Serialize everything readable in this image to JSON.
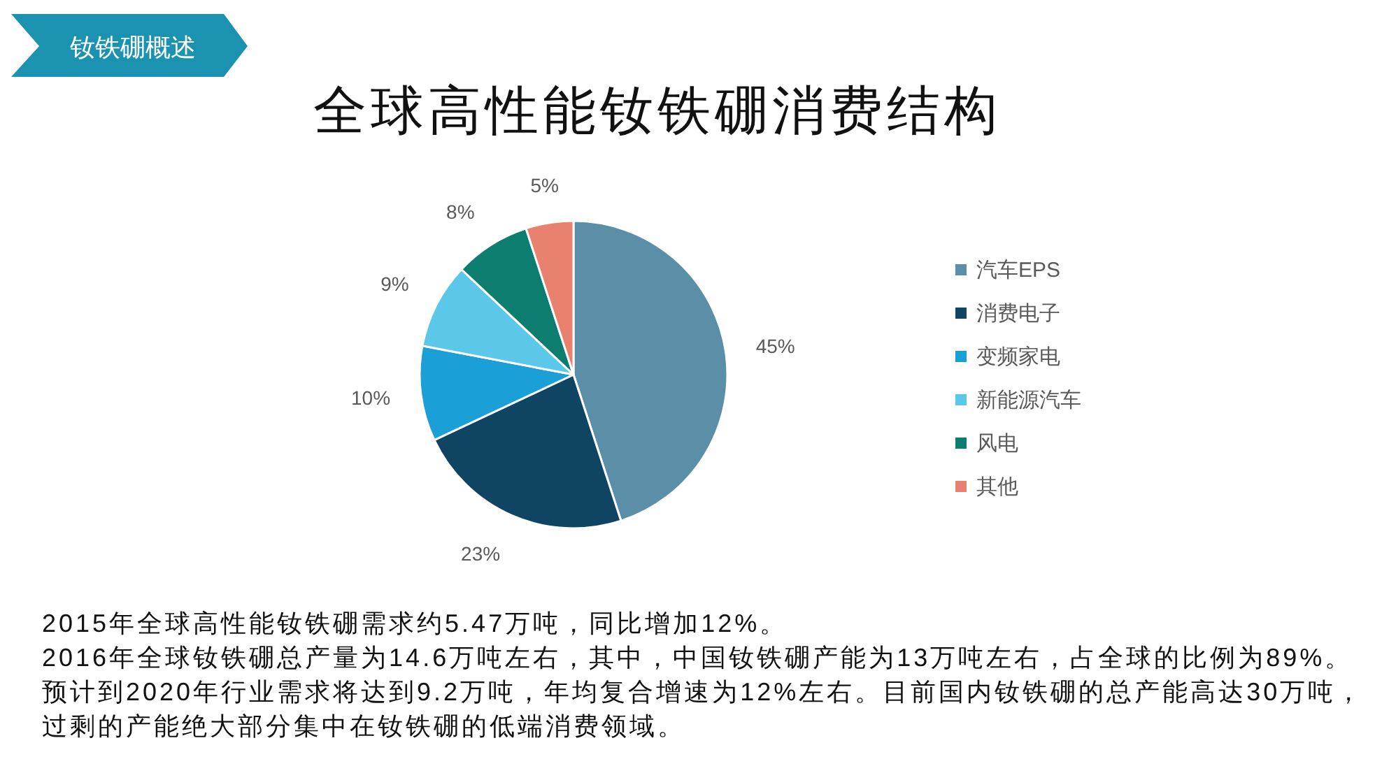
{
  "chart_data": {
    "type": "pie",
    "title": "全球高性能钕铁硼消费结构",
    "subtitle": "钕铁硼概述",
    "categories": [
      "汽车EPS",
      "消费电子",
      "变频家电",
      "新能源汽车",
      "风电",
      "其他"
    ],
    "values": [
      45,
      23,
      10,
      9,
      8,
      5
    ],
    "colors": [
      "#5b8fa8",
      "#0f4463",
      "#1a9fd6",
      "#5bc8ea",
      "#0c7d6e",
      "#e8826e"
    ],
    "value_labels": [
      "45%",
      "23%",
      "10%",
      "9%",
      "8%",
      "5%"
    ],
    "legend": "right",
    "annotations": [
      "2015年全球高性能钕铁硼需求约5.47万吨，同比增加12%。",
      "2016年全球钕铁硼总产量为14.6万吨左右，其中，中国钕铁硼产能为13万吨左右，占全球的比例为89%。",
      "预计到2020年行业需求将达到9.2万吨，年均复合增速为12%左右。目前国内钕铁硼的总产能高达30万吨，",
      "过剩的产能绝大部分集中在钕铁硼的低端消费领域。"
    ]
  }
}
